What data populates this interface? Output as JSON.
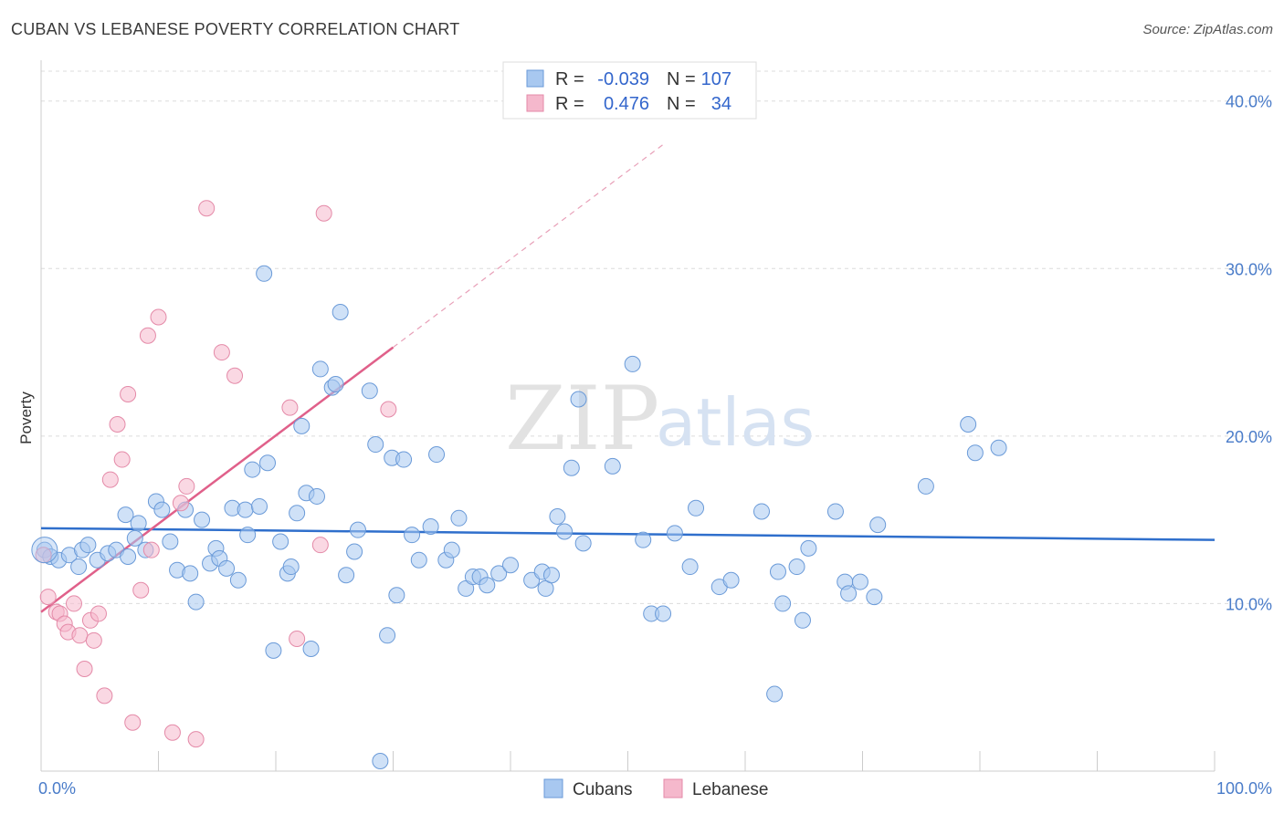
{
  "title": "CUBAN VS LEBANESE POVERTY CORRELATION CHART",
  "source": "Source: ZipAtlas.com",
  "watermark": {
    "zip": "ZIP",
    "atlas": "atlas"
  },
  "legend": {
    "r_label": "R =",
    "n_label": "N =",
    "rows": [
      {
        "r": "-0.039",
        "n": "107",
        "color": "#a8c8f0"
      },
      {
        "r": "0.476",
        "n": "34",
        "color": "#f5b8cc"
      }
    ]
  },
  "chart_data": {
    "type": "scatter",
    "title": "CUBAN VS LEBANESE POVERTY CORRELATION CHART",
    "xlabel": "",
    "ylabel": "Poverty",
    "xlim": [
      0,
      100
    ],
    "ylim": [
      0,
      42
    ],
    "x_tick_labels": [
      "0.0%",
      "100.0%"
    ],
    "y_ticks": [
      10,
      20,
      30,
      40
    ],
    "y_tick_labels": [
      "10.0%",
      "20.0%",
      "30.0%",
      "40.0%"
    ],
    "grid": true,
    "legend_position": "top-center",
    "series": [
      {
        "name": "Cubans",
        "color": "#a8c8f0",
        "stroke": "#6a9ad8",
        "trend": {
          "x0": 0,
          "y0": 14.5,
          "x1": 100,
          "y1": 13.8,
          "color": "#2f6fcc"
        },
        "points": [
          [
            0.3,
            13.2
          ],
          [
            0.8,
            12.8
          ],
          [
            1.5,
            12.6
          ],
          [
            2.4,
            12.9
          ],
          [
            3.2,
            12.2
          ],
          [
            3.5,
            13.2
          ],
          [
            4.0,
            13.5
          ],
          [
            4.8,
            12.6
          ],
          [
            5.7,
            13.0
          ],
          [
            6.4,
            13.2
          ],
          [
            7.2,
            15.3
          ],
          [
            7.4,
            12.8
          ],
          [
            8.0,
            13.9
          ],
          [
            8.3,
            14.8
          ],
          [
            8.9,
            13.2
          ],
          [
            9.8,
            16.1
          ],
          [
            10.3,
            15.6
          ],
          [
            11.0,
            13.7
          ],
          [
            11.6,
            12.0
          ],
          [
            12.3,
            15.6
          ],
          [
            12.7,
            11.8
          ],
          [
            13.2,
            10.1
          ],
          [
            13.7,
            15.0
          ],
          [
            14.4,
            12.4
          ],
          [
            14.9,
            13.3
          ],
          [
            15.2,
            12.7
          ],
          [
            15.8,
            12.1
          ],
          [
            16.3,
            15.7
          ],
          [
            16.8,
            11.4
          ],
          [
            17.4,
            15.6
          ],
          [
            17.6,
            14.1
          ],
          [
            18.0,
            18.0
          ],
          [
            18.6,
            15.8
          ],
          [
            19.0,
            29.7
          ],
          [
            19.3,
            18.4
          ],
          [
            19.8,
            7.2
          ],
          [
            20.4,
            13.7
          ],
          [
            21.0,
            11.8
          ],
          [
            21.3,
            12.2
          ],
          [
            21.8,
            15.4
          ],
          [
            22.2,
            20.6
          ],
          [
            22.6,
            16.6
          ],
          [
            23.0,
            7.3
          ],
          [
            23.5,
            16.4
          ],
          [
            23.8,
            24.0
          ],
          [
            24.8,
            22.9
          ],
          [
            25.1,
            23.1
          ],
          [
            25.5,
            27.4
          ],
          [
            26.0,
            11.7
          ],
          [
            26.7,
            13.1
          ],
          [
            27.0,
            14.4
          ],
          [
            28.0,
            22.7
          ],
          [
            28.5,
            19.5
          ],
          [
            28.9,
            0.6
          ],
          [
            29.5,
            8.1
          ],
          [
            29.9,
            18.7
          ],
          [
            30.3,
            10.5
          ],
          [
            30.9,
            18.6
          ],
          [
            31.6,
            14.1
          ],
          [
            32.2,
            12.6
          ],
          [
            33.2,
            14.6
          ],
          [
            33.7,
            18.9
          ],
          [
            34.5,
            12.6
          ],
          [
            35.0,
            13.2
          ],
          [
            35.6,
            15.1
          ],
          [
            36.2,
            10.9
          ],
          [
            36.8,
            11.6
          ],
          [
            37.4,
            11.6
          ],
          [
            38.0,
            11.1
          ],
          [
            39.0,
            11.8
          ],
          [
            40.0,
            12.3
          ],
          [
            41.8,
            11.4
          ],
          [
            42.7,
            11.9
          ],
          [
            43.0,
            10.9
          ],
          [
            43.5,
            11.7
          ],
          [
            44.0,
            15.2
          ],
          [
            44.6,
            14.3
          ],
          [
            45.2,
            18.1
          ],
          [
            45.8,
            22.2
          ],
          [
            46.2,
            13.6
          ],
          [
            48.7,
            18.2
          ],
          [
            50.4,
            24.3
          ],
          [
            51.3,
            13.8
          ],
          [
            52.0,
            9.4
          ],
          [
            53.0,
            9.4
          ],
          [
            54.0,
            14.2
          ],
          [
            55.3,
            12.2
          ],
          [
            55.8,
            15.7
          ],
          [
            57.8,
            11.0
          ],
          [
            58.8,
            11.4
          ],
          [
            61.4,
            15.5
          ],
          [
            62.5,
            4.6
          ],
          [
            62.8,
            11.9
          ],
          [
            63.2,
            10.0
          ],
          [
            64.4,
            12.2
          ],
          [
            64.9,
            9.0
          ],
          [
            65.4,
            13.3
          ],
          [
            67.7,
            15.5
          ],
          [
            68.5,
            11.3
          ],
          [
            68.8,
            10.6
          ],
          [
            69.8,
            11.3
          ],
          [
            71.0,
            10.4
          ],
          [
            71.3,
            14.7
          ],
          [
            75.4,
            17.0
          ],
          [
            79.0,
            20.7
          ],
          [
            79.6,
            19.0
          ],
          [
            81.6,
            19.3
          ]
        ]
      },
      {
        "name": "Lebanese",
        "color": "#f5b8cc",
        "stroke": "#e48aa8",
        "trend": {
          "x0": 0,
          "y0": 9.5,
          "x1": 30,
          "y1": 25.3,
          "x2": 53,
          "y2": 37.4,
          "color": "#e0608a"
        },
        "points": [
          [
            0.2,
            12.9
          ],
          [
            0.6,
            10.4
          ],
          [
            1.3,
            9.5
          ],
          [
            1.6,
            9.4
          ],
          [
            2.0,
            8.8
          ],
          [
            2.3,
            8.3
          ],
          [
            2.8,
            10.0
          ],
          [
            3.3,
            8.1
          ],
          [
            3.7,
            6.1
          ],
          [
            4.2,
            9.0
          ],
          [
            4.5,
            7.8
          ],
          [
            4.9,
            9.4
          ],
          [
            5.4,
            4.5
          ],
          [
            5.9,
            17.4
          ],
          [
            6.5,
            20.7
          ],
          [
            6.9,
            18.6
          ],
          [
            7.4,
            22.5
          ],
          [
            7.8,
            2.9
          ],
          [
            8.5,
            10.8
          ],
          [
            9.1,
            26.0
          ],
          [
            9.4,
            13.2
          ],
          [
            10.0,
            27.1
          ],
          [
            11.2,
            2.3
          ],
          [
            11.9,
            16.0
          ],
          [
            12.4,
            17.0
          ],
          [
            13.2,
            1.9
          ],
          [
            14.1,
            33.6
          ],
          [
            15.4,
            25.0
          ],
          [
            16.5,
            23.6
          ],
          [
            21.2,
            21.7
          ],
          [
            21.8,
            7.9
          ],
          [
            23.8,
            13.5
          ],
          [
            24.1,
            33.3
          ],
          [
            29.6,
            21.6
          ]
        ]
      }
    ]
  }
}
